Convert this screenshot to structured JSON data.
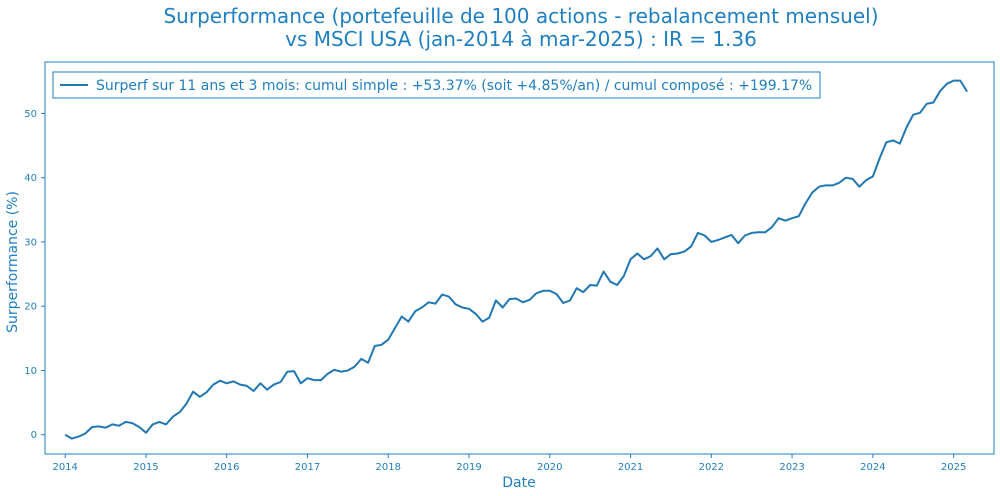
{
  "chart_data": {
    "type": "line",
    "title": "Surperformance (portefeuille de 100 actions - rebalancement mensuel)",
    "subtitle": "vs MSCI USA (jan-2014 à mar-2025) : IR = 1.36",
    "xlabel": "Date",
    "ylabel": "Surperformance (%)",
    "x_ticks": [
      "2014",
      "2015",
      "2016",
      "2017",
      "2018",
      "2019",
      "2020",
      "2021",
      "2022",
      "2023",
      "2024",
      "2025"
    ],
    "y_ticks": [
      "0",
      "10",
      "20",
      "30",
      "40",
      "50"
    ],
    "xlim": [
      "2013-10",
      "2025-07"
    ],
    "ylim": [
      -3,
      58
    ],
    "legend_position": "upper-left",
    "grid": false,
    "color": "#1f77b4",
    "series": [
      {
        "name": "Surperf sur 11 ans et 3 mois: cumul simple : +53.37% (soit +4.85%/an) / cumul composé : +199.17%",
        "x": [
          "2014-01",
          "2014-02",
          "2014-03",
          "2014-04",
          "2014-05",
          "2014-06",
          "2014-07",
          "2014-08",
          "2014-09",
          "2014-10",
          "2014-11",
          "2014-12",
          "2015-01",
          "2015-02",
          "2015-03",
          "2015-04",
          "2015-05",
          "2015-06",
          "2015-07",
          "2015-08",
          "2015-09",
          "2015-10",
          "2015-11",
          "2015-12",
          "2016-01",
          "2016-02",
          "2016-03",
          "2016-04",
          "2016-05",
          "2016-06",
          "2016-07",
          "2016-08",
          "2016-09",
          "2016-10",
          "2016-11",
          "2016-12",
          "2017-01",
          "2017-02",
          "2017-03",
          "2017-04",
          "2017-05",
          "2017-06",
          "2017-07",
          "2017-08",
          "2017-09",
          "2017-10",
          "2017-11",
          "2017-12",
          "2018-01",
          "2018-02",
          "2018-03",
          "2018-04",
          "2018-05",
          "2018-06",
          "2018-07",
          "2018-08",
          "2018-09",
          "2018-10",
          "2018-11",
          "2018-12",
          "2019-01",
          "2019-02",
          "2019-03",
          "2019-04",
          "2019-05",
          "2019-06",
          "2019-07",
          "2019-08",
          "2019-09",
          "2019-10",
          "2019-11",
          "2019-12",
          "2020-01",
          "2020-02",
          "2020-03",
          "2020-04",
          "2020-05",
          "2020-06",
          "2020-07",
          "2020-08",
          "2020-09",
          "2020-10",
          "2020-11",
          "2020-12",
          "2021-01",
          "2021-02",
          "2021-03",
          "2021-04",
          "2021-05",
          "2021-06",
          "2021-07",
          "2021-08",
          "2021-09",
          "2021-10",
          "2021-11",
          "2021-12",
          "2022-01",
          "2022-02",
          "2022-03",
          "2022-04",
          "2022-05",
          "2022-06",
          "2022-07",
          "2022-08",
          "2022-09",
          "2022-10",
          "2022-11",
          "2022-12",
          "2023-01",
          "2023-02",
          "2023-03",
          "2023-04",
          "2023-05",
          "2023-06",
          "2023-07",
          "2023-08",
          "2023-09",
          "2023-10",
          "2023-11",
          "2023-12",
          "2024-01",
          "2024-02",
          "2024-03",
          "2024-04",
          "2024-05",
          "2024-06",
          "2024-07",
          "2024-08",
          "2024-09",
          "2024-10",
          "2024-11",
          "2024-12",
          "2025-01",
          "2025-02",
          "2025-03"
        ],
        "values": [
          0.0,
          -0.6,
          -0.3,
          0.2,
          1.2,
          1.3,
          1.1,
          1.6,
          1.4,
          2.0,
          1.8,
          1.2,
          0.3,
          1.6,
          2.0,
          1.6,
          2.8,
          3.5,
          4.8,
          6.7,
          5.9,
          6.6,
          7.8,
          8.4,
          8.0,
          8.3,
          7.8,
          7.6,
          6.8,
          8.0,
          7.0,
          7.8,
          8.2,
          9.8,
          9.9,
          8.0,
          8.8,
          8.5,
          8.5,
          9.5,
          10.1,
          9.8,
          10.0,
          10.6,
          11.8,
          11.2,
          13.8,
          14.0,
          14.8,
          16.6,
          18.4,
          17.6,
          19.2,
          19.8,
          20.6,
          20.4,
          21.8,
          21.5,
          20.3,
          19.8,
          19.6,
          18.8,
          17.6,
          18.2,
          20.9,
          19.8,
          21.1,
          21.2,
          20.6,
          21.0,
          22.0,
          22.4,
          22.4,
          21.9,
          20.5,
          20.9,
          22.8,
          22.2,
          23.3,
          23.2,
          25.4,
          23.8,
          23.3,
          24.7,
          27.3,
          28.2,
          27.3,
          27.8,
          29.0,
          27.3,
          28.1,
          28.2,
          28.5,
          29.3,
          31.4,
          31.0,
          30.0,
          30.3,
          30.7,
          31.1,
          29.8,
          31.0,
          31.4,
          31.5,
          31.5,
          32.3,
          33.7,
          33.3,
          33.7,
          34.0,
          36.0,
          37.7,
          38.6,
          38.8,
          38.8,
          39.2,
          40.0,
          39.8,
          38.6,
          39.6,
          40.2,
          43.0,
          45.5,
          45.8,
          45.3,
          47.8,
          49.8,
          50.1,
          51.5,
          51.7,
          53.5,
          54.6,
          55.1,
          55.1,
          53.4
        ]
      }
    ]
  }
}
